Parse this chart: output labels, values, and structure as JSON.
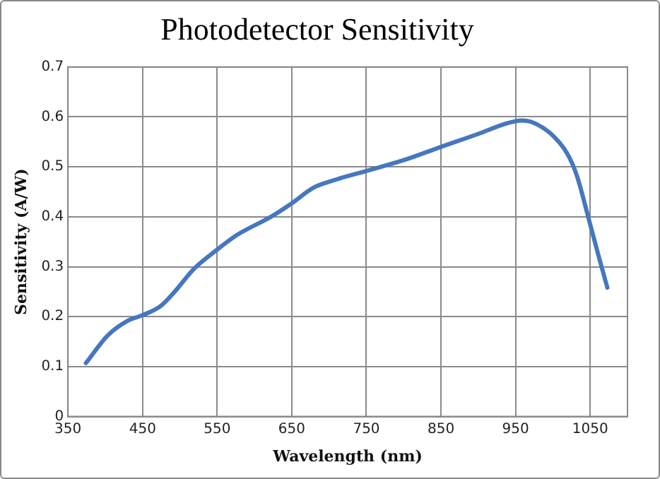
{
  "chart_data": {
    "type": "line",
    "title": "Photodetector Sensitivity",
    "xlabel": "Wavelength (nm)",
    "ylabel": "Sensitivity (A/W)",
    "x": [
      374,
      403,
      429,
      450,
      474,
      493,
      519,
      548,
      577,
      622,
      648,
      680,
      706,
      748,
      803,
      848,
      900,
      938,
      958,
      971,
      996,
      1019,
      1032,
      1048,
      1061,
      1073
    ],
    "series": [
      {
        "color": "#4677bf",
        "values": [
          0.107,
          0.162,
          0.191,
          0.203,
          0.221,
          0.25,
          0.296,
          0.332,
          0.364,
          0.4,
          0.425,
          0.459,
          0.473,
          0.491,
          0.515,
          0.539,
          0.566,
          0.587,
          0.593,
          0.59,
          0.568,
          0.527,
          0.483,
          0.396,
          0.323,
          0.258
        ]
      }
    ],
    "xlim": [
      350,
      1100
    ],
    "xticks": [
      350,
      450,
      550,
      650,
      750,
      850,
      950,
      1050
    ],
    "ylim": [
      0,
      0.7
    ],
    "yticks": [
      0,
      0.1,
      0.2,
      0.3,
      0.4,
      0.5,
      0.6,
      0.7
    ],
    "grid": true,
    "legend": false,
    "marker": "none",
    "line_style": "solid"
  }
}
